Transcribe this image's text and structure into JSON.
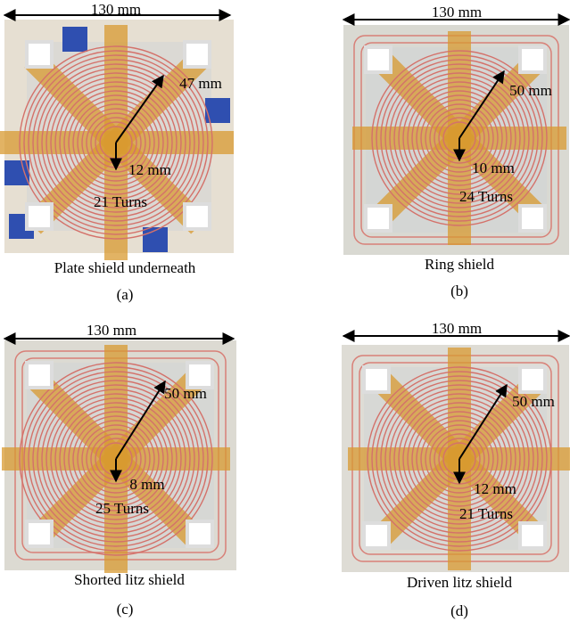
{
  "panels": [
    {
      "width_label": "130 mm",
      "outer_radius_label": "47 mm",
      "inner_radius_label": "12 mm",
      "turns_label": "21 Turns",
      "caption": "Plate shield underneath",
      "letter": "(a)"
    },
    {
      "width_label": "130 mm",
      "outer_radius_label": "50 mm",
      "inner_radius_label": "10 mm",
      "turns_label": "24 Turns",
      "caption": "Ring shield",
      "letter": "(b)"
    },
    {
      "width_label": "130 mm",
      "outer_radius_label": "50 mm",
      "inner_radius_label": "8 mm",
      "turns_label": "25 Turns",
      "caption": "Shorted litz shield",
      "letter": "(c)"
    },
    {
      "width_label": "130 mm",
      "outer_radius_label": "50 mm",
      "inner_radius_label": "12 mm",
      "turns_label": "21 Turns",
      "caption": "Driven litz shield",
      "letter": "(d)"
    }
  ]
}
